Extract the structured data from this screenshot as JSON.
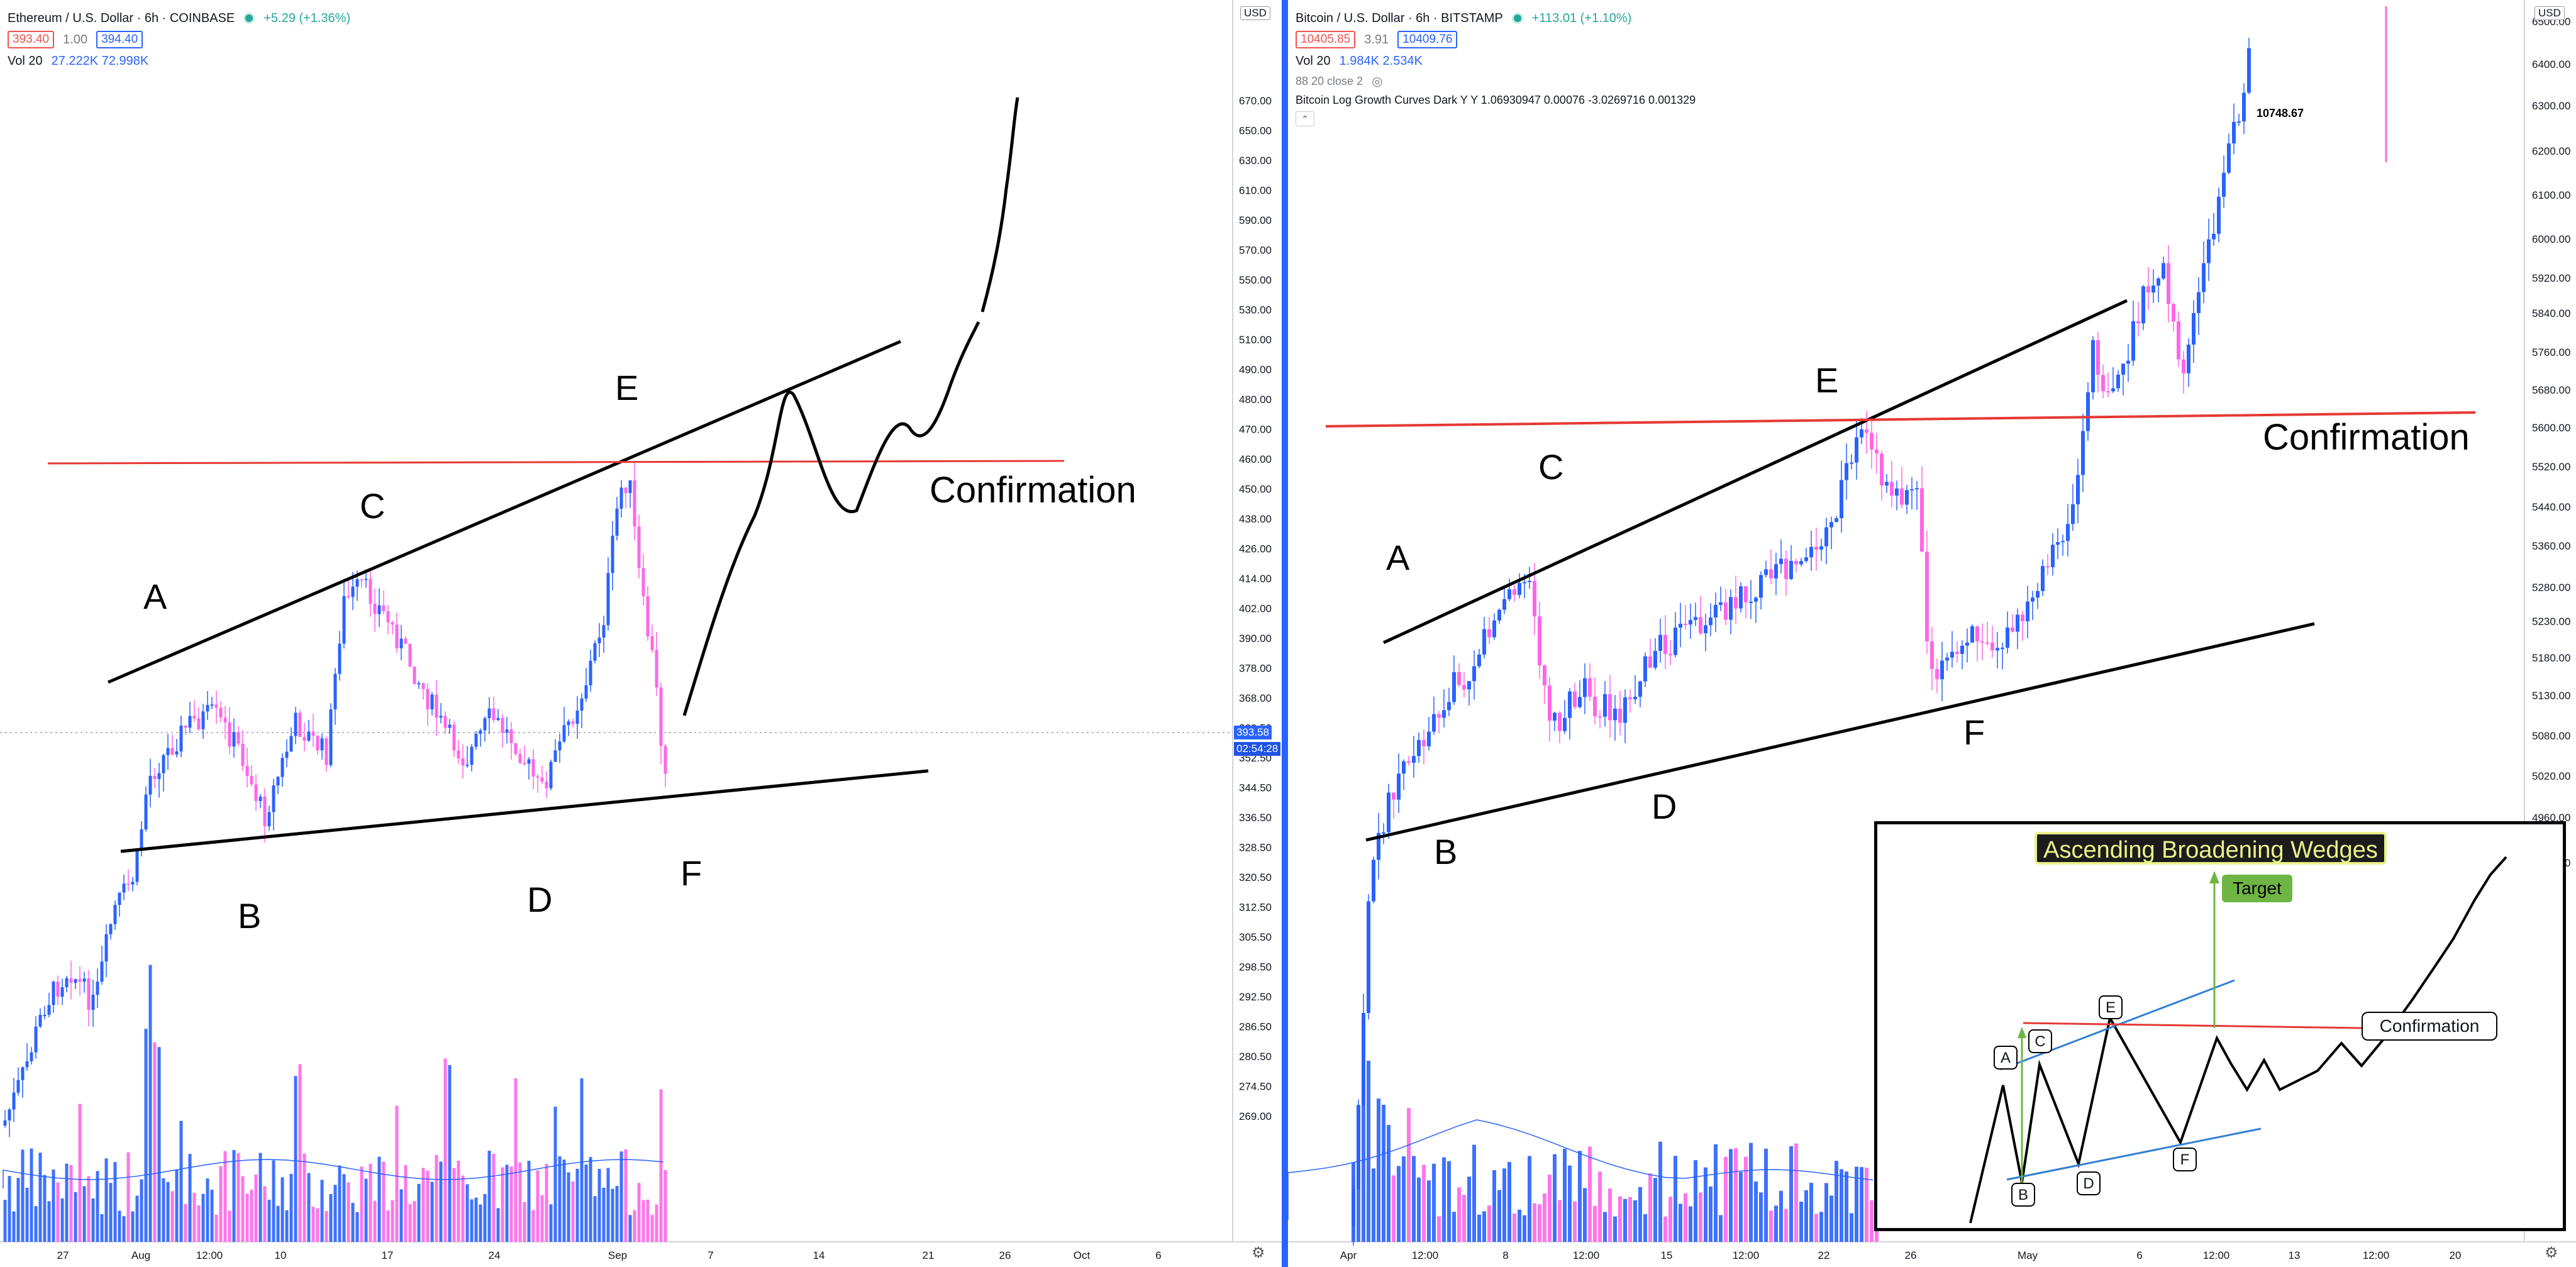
{
  "left": {
    "title": "Ethereum / U.S. Dollar · 6h · COINBASE",
    "change": "+5.29 (+1.36%)",
    "bid": "393.40",
    "spread": "1.00",
    "ask": "394.40",
    "vol_label": "Vol 20",
    "vol_values": "27.222K  72.998K",
    "currency": "USD",
    "last_price": "393.58",
    "countdown": "02:54:28",
    "price_axis": [
      "670.00",
      "650.00",
      "630.00",
      "610.00",
      "590.00",
      "570.00",
      "550.00",
      "530.00",
      "510.00",
      "490.00",
      "480.00",
      "470.00",
      "460.00",
      "450.00",
      "438.00",
      "426.00",
      "414.00",
      "402.00",
      "390.00",
      "378.00",
      "368.00",
      "360.50",
      "352.50",
      "344.50",
      "336.50",
      "328.50",
      "320.50",
      "312.50",
      "305.50",
      "298.50",
      "292.50",
      "286.50",
      "280.50",
      "274.50",
      "269.00"
    ],
    "time_axis": [
      "27",
      "Aug",
      "12:00",
      "10",
      "17",
      "24",
      "Sep",
      "7",
      "14",
      "21",
      "26",
      "Oct",
      "6"
    ],
    "wave_labels": [
      "A",
      "B",
      "C",
      "D",
      "E",
      "F"
    ],
    "confirmation": "Confirmation"
  },
  "right": {
    "title": "Bitcoin / U.S. Dollar · 6h · BITSTAMP",
    "change": "+113.01 (+1.10%)",
    "bid": "10405.85",
    "spread": "3.91",
    "ask": "10409.76",
    "vol_label": "Vol 20",
    "vol_values": "1.984K  2.534K",
    "ma_label": "88 20 close 2",
    "indicator": "Bitcoin Log Growth Curves Dark Y Y 1.06930947 0.00076 -3.0269716 0.001329",
    "currency": "USD",
    "value_label": "10748.67",
    "price_axis": [
      "6500.00",
      "6400.00",
      "6300.00",
      "6200.00",
      "6100.00",
      "6000.00",
      "5920.00",
      "5840.00",
      "5760.00",
      "5680.00",
      "5600.00",
      "5520.00",
      "5440.00",
      "5360.00",
      "5280.00",
      "5230.00",
      "5180.00",
      "5130.00",
      "5080.00",
      "5020.00",
      "4960.00",
      "4900.00"
    ],
    "time_axis": [
      "Apr",
      "12:00",
      "8",
      "12:00",
      "15",
      "12:00",
      "22",
      "26",
      "May",
      "6",
      "12:00",
      "13",
      "12:00",
      "20"
    ],
    "wave_labels": [
      "A",
      "B",
      "C",
      "D",
      "E",
      "F"
    ],
    "confirmation": "Confirmation"
  },
  "inset": {
    "title": "Ascending Broadening Wedges",
    "target": "Target",
    "confirmation": "Confirmation",
    "nodes": [
      "A",
      "B",
      "C",
      "D",
      "E",
      "F"
    ]
  },
  "chart_data": [
    {
      "type": "candlestick",
      "title": "Ethereum / U.S. Dollar · 6h · COINBASE",
      "ylim": [
        265,
        690
      ],
      "x_ticks": [
        "27",
        "Aug",
        "12:00",
        "10",
        "17",
        "24",
        "Sep",
        "7",
        "14",
        "21",
        "26",
        "Oct",
        "6"
      ],
      "key_levels": {
        "A": 414,
        "B": 368,
        "C": 445,
        "D": 370,
        "E": 486,
        "F": 372,
        "confirmation": 487,
        "last": 393.58
      },
      "annotations": [
        "A",
        "B",
        "C",
        "D",
        "E",
        "F",
        "Confirmation"
      ]
    },
    {
      "type": "candlestick",
      "title": "Bitcoin / U.S. Dollar · 6h · BITSTAMP",
      "ylim": [
        4850,
        6560
      ],
      "x_ticks": [
        "Apr",
        "12:00",
        "8",
        "12:00",
        "15",
        "12:00",
        "22",
        "26",
        "May",
        "6",
        "12:00",
        "13",
        "12:00",
        "20"
      ],
      "key_levels": {
        "A": 5230,
        "B": 4900,
        "C": 5300,
        "D": 4980,
        "E": 5600,
        "F": 5080,
        "confirmation": 5600,
        "label": 10748.67
      },
      "annotations": [
        "A",
        "B",
        "C",
        "D",
        "E",
        "F",
        "Confirmation"
      ]
    }
  ]
}
